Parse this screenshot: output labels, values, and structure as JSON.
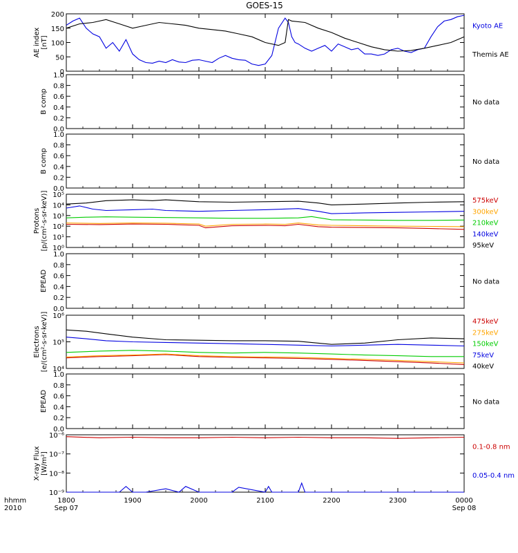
{
  "title": "GOES-15",
  "time_axis": {
    "row1_label": "hhmm",
    "row2_label": "2010",
    "ticks": [
      {
        "t": 0,
        "label": "1800",
        "sub": "Sep 07"
      },
      {
        "t": 1,
        "label": "1900",
        "sub": ""
      },
      {
        "t": 2,
        "label": "2000",
        "sub": ""
      },
      {
        "t": 3,
        "label": "2100",
        "sub": ""
      },
      {
        "t": 4,
        "label": "2200",
        "sub": ""
      },
      {
        "t": 5,
        "label": "2300",
        "sub": ""
      },
      {
        "t": 6,
        "label": "0000",
        "sub": "Sep 08"
      }
    ]
  },
  "colors": {
    "black": "#000000",
    "blue": "#0000e0",
    "green": "#00cc00",
    "orange": "#ffa500",
    "red": "#cc0000",
    "grid": "#000000"
  },
  "chart_data": [
    {
      "id": "ae",
      "type": "line",
      "scale": "linear",
      "ylabel": [
        "AE index",
        "[nT]"
      ],
      "ylim": [
        0,
        200
      ],
      "yticks": [
        0,
        50,
        100,
        150,
        200
      ],
      "ytick_labels": [
        "0",
        "50",
        "100",
        "150",
        "200"
      ],
      "no_data": false,
      "series": [
        {
          "name": "Kyoto AE",
          "color": "#0000e0",
          "x": [
            0,
            0.1,
            0.2,
            0.3,
            0.4,
            0.5,
            0.6,
            0.7,
            0.8,
            0.9,
            1.0,
            1.1,
            1.2,
            1.3,
            1.4,
            1.5,
            1.6,
            1.7,
            1.8,
            1.9,
            2.0,
            2.1,
            2.2,
            2.3,
            2.4,
            2.5,
            2.6,
            2.7,
            2.8,
            2.9,
            3.0,
            3.1,
            3.2,
            3.3,
            3.35,
            3.4,
            3.45,
            3.5,
            3.6,
            3.7,
            3.8,
            3.9,
            4.0,
            4.1,
            4.2,
            4.3,
            4.4,
            4.5,
            4.6,
            4.7,
            4.8,
            4.9,
            5.0,
            5.1,
            5.2,
            5.3,
            5.4,
            5.5,
            5.6,
            5.7,
            5.8,
            5.9,
            6.0
          ],
          "y": [
            160,
            175,
            185,
            150,
            130,
            120,
            80,
            100,
            70,
            110,
            60,
            40,
            30,
            28,
            35,
            30,
            40,
            32,
            30,
            38,
            40,
            35,
            30,
            45,
            55,
            45,
            40,
            38,
            25,
            20,
            25,
            55,
            150,
            185,
            170,
            120,
            100,
            95,
            80,
            70,
            80,
            90,
            70,
            95,
            85,
            75,
            80,
            60,
            60,
            55,
            60,
            75,
            80,
            70,
            65,
            75,
            80,
            120,
            155,
            175,
            180,
            190,
            195
          ]
        },
        {
          "name": "Themis AE",
          "color": "#000000",
          "x": [
            0,
            0.2,
            0.4,
            0.6,
            0.8,
            1.0,
            1.2,
            1.4,
            1.6,
            1.8,
            2.0,
            2.2,
            2.4,
            2.6,
            2.8,
            3.0,
            3.2,
            3.3,
            3.35,
            3.4,
            3.6,
            3.8,
            4.0,
            4.2,
            4.4,
            4.6,
            4.8,
            5.0,
            5.2,
            5.4,
            5.6,
            5.8,
            6.0
          ],
          "y": [
            150,
            165,
            170,
            180,
            165,
            150,
            160,
            170,
            165,
            160,
            150,
            145,
            140,
            130,
            120,
            100,
            90,
            100,
            180,
            175,
            170,
            150,
            135,
            115,
            100,
            85,
            75,
            70,
            72,
            80,
            90,
            100,
            120
          ]
        }
      ]
    },
    {
      "id": "bcomp1",
      "type": "line",
      "scale": "linear",
      "ylabel": [
        "B comp"
      ],
      "ylim": [
        0,
        1
      ],
      "yticks": [
        0,
        0.2,
        0.4,
        0.6,
        0.8,
        1.0
      ],
      "ytick_labels": [
        "0.0",
        "0.2",
        "0.4",
        "0.6",
        "0.8",
        "1.0"
      ],
      "no_data": true,
      "status": "No data",
      "series": []
    },
    {
      "id": "bcomp2",
      "type": "line",
      "scale": "linear",
      "ylabel": [
        "B comp"
      ],
      "ylim": [
        0,
        1
      ],
      "yticks": [
        0,
        0.2,
        0.4,
        0.6,
        0.8,
        1.0
      ],
      "ytick_labels": [
        "0.0",
        "0.2",
        "0.4",
        "0.6",
        "0.8",
        "1.0"
      ],
      "no_data": true,
      "status": "No data",
      "series": []
    },
    {
      "id": "protons",
      "type": "line",
      "scale": "log",
      "ylabel": [
        "Protons",
        "[p/(cm²-s-sr-keV)]"
      ],
      "ylim": [
        1,
        100000
      ],
      "yticks": [
        1,
        10,
        100,
        1000,
        10000,
        100000
      ],
      "ytick_labels": [
        "10⁰",
        "10¹",
        "10²",
        "10³",
        "10⁴",
        "10⁵"
      ],
      "no_data": false,
      "series": [
        {
          "name": "575keV",
          "color": "#cc0000",
          "x": [
            0,
            0.5,
            1.0,
            1.5,
            2.0,
            2.1,
            2.5,
            3.0,
            3.3,
            3.5,
            3.8,
            4.0,
            4.5,
            5.0,
            5.5,
            6.0
          ],
          "y": [
            150,
            140,
            160,
            150,
            120,
            70,
            110,
            120,
            110,
            150,
            90,
            80,
            75,
            70,
            60,
            50
          ]
        },
        {
          "name": "300keV",
          "color": "#ffa500",
          "x": [
            0,
            0.5,
            1.0,
            1.5,
            2.0,
            2.1,
            2.5,
            3.0,
            3.3,
            3.5,
            3.8,
            4.0,
            4.5,
            5.0,
            5.5,
            6.0
          ],
          "y": [
            200,
            180,
            200,
            190,
            160,
            100,
            150,
            160,
            150,
            200,
            130,
            120,
            110,
            100,
            95,
            90
          ]
        },
        {
          "name": "210keV",
          "color": "#00cc00",
          "x": [
            0,
            0.3,
            0.6,
            1.0,
            1.5,
            2.0,
            2.5,
            3.0,
            3.5,
            3.7,
            4.0,
            4.5,
            5.0,
            5.5,
            6.0
          ],
          "y": [
            600,
            700,
            750,
            700,
            650,
            600,
            550,
            550,
            600,
            800,
            400,
            380,
            350,
            350,
            380
          ]
        },
        {
          "name": "140keV",
          "color": "#0000e0",
          "x": [
            0,
            0.2,
            0.4,
            0.6,
            1.0,
            1.3,
            1.5,
            2.0,
            2.5,
            3.0,
            3.5,
            3.8,
            4.0,
            4.5,
            5.0,
            5.5,
            6.0
          ],
          "y": [
            5000,
            8000,
            4000,
            3000,
            3500,
            4000,
            3000,
            2500,
            3000,
            3500,
            4500,
            2500,
            1500,
            1800,
            2000,
            2200,
            2500
          ]
        },
        {
          "name": "95keV",
          "color": "#000000",
          "x": [
            0,
            0.3,
            0.6,
            1.0,
            1.3,
            1.5,
            2.0,
            2.5,
            3.0,
            3.5,
            3.8,
            4.0,
            4.5,
            5.0,
            5.5,
            6.0
          ],
          "y": [
            12000,
            15000,
            25000,
            30000,
            25000,
            30000,
            20000,
            18000,
            20000,
            22000,
            15000,
            10000,
            12000,
            15000,
            18000,
            20000
          ]
        }
      ]
    },
    {
      "id": "epead1",
      "type": "line",
      "scale": "linear",
      "ylabel": [
        "EPEAD"
      ],
      "ylim": [
        0,
        1
      ],
      "yticks": [
        0,
        0.2,
        0.4,
        0.6,
        0.8,
        1.0
      ],
      "ytick_labels": [
        "0.0",
        "0.2",
        "0.4",
        "0.6",
        "0.8",
        "1.0"
      ],
      "no_data": true,
      "status": "No data",
      "series": []
    },
    {
      "id": "electrons",
      "type": "line",
      "scale": "log",
      "ylabel": [
        "Electrons",
        "[e/(cm²-s-sr-keV)]"
      ],
      "ylim": [
        10000,
        1000000
      ],
      "yticks": [
        10000,
        100000,
        1000000
      ],
      "ytick_labels": [
        "10⁴",
        "10⁵",
        "10⁶"
      ],
      "no_data": false,
      "series": [
        {
          "name": "475keV",
          "color": "#cc0000",
          "x": [
            0,
            0.5,
            1.0,
            1.5,
            2.0,
            2.5,
            3.0,
            3.5,
            4.0,
            4.5,
            5.0,
            5.5,
            6.0
          ],
          "y": [
            25000,
            28000,
            30000,
            33000,
            28000,
            26000,
            25000,
            24000,
            22000,
            20000,
            18000,
            16000,
            14000
          ]
        },
        {
          "name": "275keV",
          "color": "#ffa500",
          "x": [
            0,
            0.5,
            1.0,
            1.5,
            2.0,
            2.5,
            3.0,
            3.5,
            4.0,
            4.5,
            5.0,
            5.5,
            6.0
          ],
          "y": [
            27000,
            30000,
            32000,
            35000,
            30000,
            28000,
            27000,
            26000,
            24000,
            22000,
            20000,
            18000,
            16000
          ]
        },
        {
          "name": "150keV",
          "color": "#00cc00",
          "x": [
            0,
            0.5,
            1.0,
            1.5,
            2.0,
            2.5,
            3.0,
            3.5,
            4.0,
            4.5,
            5.0,
            5.5,
            6.0
          ],
          "y": [
            40000,
            45000,
            48000,
            45000,
            40000,
            38000,
            40000,
            38000,
            35000,
            32000,
            30000,
            28000,
            28000
          ]
        },
        {
          "name": "75keV",
          "color": "#0000e0",
          "x": [
            0,
            0.3,
            0.6,
            1.0,
            1.5,
            2.0,
            2.5,
            3.0,
            3.5,
            4.0,
            4.5,
            5.0,
            5.5,
            6.0
          ],
          "y": [
            150000,
            130000,
            110000,
            100000,
            95000,
            90000,
            85000,
            80000,
            75000,
            70000,
            75000,
            80000,
            75000,
            70000
          ]
        },
        {
          "name": "40keV",
          "color": "#000000",
          "x": [
            0,
            0.3,
            0.6,
            1.0,
            1.5,
            2.0,
            2.5,
            3.0,
            3.5,
            4.0,
            4.5,
            5.0,
            5.5,
            6.0
          ],
          "y": [
            280000,
            250000,
            200000,
            150000,
            120000,
            115000,
            110000,
            110000,
            105000,
            80000,
            90000,
            120000,
            140000,
            130000
          ]
        }
      ]
    },
    {
      "id": "epead2",
      "type": "line",
      "scale": "linear",
      "ylabel": [
        "EPEAD"
      ],
      "ylim": [
        0,
        1
      ],
      "yticks": [
        0,
        0.2,
        0.4,
        0.6,
        0.8,
        1.0
      ],
      "ytick_labels": [
        "0.0",
        "0.2",
        "0.4",
        "0.6",
        "0.8",
        "1.0"
      ],
      "no_data": true,
      "status": "No data",
      "series": []
    },
    {
      "id": "xray",
      "type": "line",
      "scale": "log",
      "ylabel": [
        "X-ray Flux",
        "[W/m²]"
      ],
      "ylim": [
        1e-09,
        1e-06
      ],
      "yticks": [
        1e-09,
        1e-08,
        1e-07,
        1e-06
      ],
      "ytick_labels": [
        "10⁻⁹",
        "10⁻⁸",
        "10⁻⁷",
        "10⁻⁶"
      ],
      "no_data": false,
      "series": [
        {
          "name": "0.1-0.8 nm",
          "color": "#cc0000",
          "x": [
            0,
            0.5,
            1.0,
            1.5,
            2.0,
            2.5,
            3.0,
            3.5,
            4.0,
            4.5,
            5.0,
            5.5,
            6.0
          ],
          "y": [
            8e-07,
            7e-07,
            7.5e-07,
            7e-07,
            7e-07,
            7.5e-07,
            7e-07,
            7.5e-07,
            7e-07,
            7e-07,
            6.5e-07,
            7e-07,
            7.5e-07
          ]
        },
        {
          "name": "0.05-0.4 nm",
          "color": "#0000e0",
          "x": [
            0,
            0.8,
            0.9,
            1.0,
            1.2,
            1.5,
            1.7,
            1.8,
            2.0,
            2.5,
            2.6,
            3.0,
            3.05,
            3.1,
            3.5,
            3.55,
            3.6,
            4.0,
            4.5,
            5.0,
            5.5,
            6.0
          ],
          "y": [
            1e-09,
            1e-09,
            2e-09,
            1e-09,
            1e-09,
            1.5e-09,
            1e-09,
            2e-09,
            1e-09,
            1e-09,
            1.8e-09,
            1e-09,
            2e-09,
            1e-09,
            1e-09,
            3e-09,
            1e-09,
            1e-09,
            1e-09,
            1e-09,
            1e-09,
            1e-09
          ]
        }
      ]
    }
  ]
}
